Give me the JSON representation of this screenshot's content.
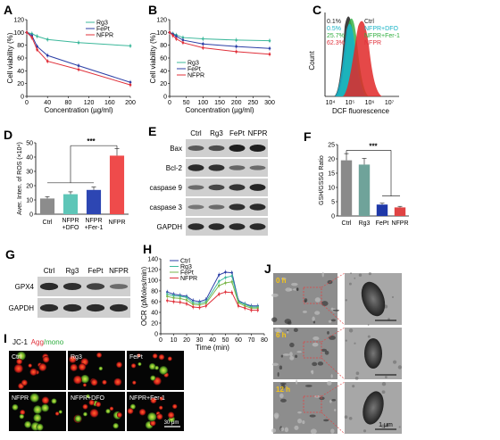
{
  "colors": {
    "rg3": "#3cb89b",
    "fept": "#2b3fa6",
    "nfpr": "#e0303a",
    "dfo": "#18b3c6",
    "fer1": "#2fae3f",
    "ctrl": "#555555",
    "bar_ctrl": "#8c8c8c",
    "bar_dfo": "#5ec6b8",
    "bar_fer": "#2d46b3",
    "bar_nfpr": "#ef4b4b",
    "bar_gsh_ctrl": "#8a8a8a",
    "bar_gsh_rg3": "#6fa39a",
    "bar_gsh_fept": "#1e38a8",
    "bar_gsh_nfpr": "#e04343"
  },
  "panels": {
    "A": "A",
    "B": "B",
    "C": "C",
    "D": "D",
    "E": "E",
    "F": "F",
    "G": "G",
    "H": "H",
    "I": "I",
    "J": "J"
  },
  "panelA": {
    "ylabel": "Cell viability (%)",
    "xlabel": "Concentration (µg/ml)",
    "yticks": [
      "120",
      "100",
      "80",
      "60",
      "40",
      "20",
      "0"
    ],
    "xticks": [
      "0",
      "40",
      "80",
      "120",
      "160",
      "200"
    ],
    "legend": [
      "Rg3",
      "FePt",
      "NFPR"
    ]
  },
  "panelB": {
    "ylabel": "Cell viability (%)",
    "xlabel": "Concentration (µg/ml)",
    "yticks": [
      "120",
      "100",
      "80",
      "60",
      "40",
      "20",
      "0"
    ],
    "xticks": [
      "0",
      "50",
      "100",
      "150",
      "200",
      "250",
      "300"
    ],
    "legend": [
      "Rg3",
      "FePt",
      "NFPR"
    ]
  },
  "panelC": {
    "ylabel": "Count",
    "xlabel": "DCF fluorescence",
    "xticks": [
      "10⁴",
      "10⁵",
      "10⁶",
      "10⁷"
    ],
    "pcts": [
      "0.1%",
      "0.5%",
      "25.7%",
      "62.3%"
    ],
    "legend": [
      "Ctrl",
      "NFPR+DFO",
      "NFPR+Fer-1",
      "NFPR"
    ]
  },
  "panelD": {
    "ylabel": "Aver. Inten. of ROS (×10⁴)",
    "sig": "***",
    "yticks": [
      "50",
      "40",
      "30",
      "20",
      "10",
      "0"
    ],
    "cats": [
      "Ctrl",
      "NFPR\n+DFO",
      "NFPR\n+Fer-1",
      "NFPR"
    ],
    "cat1": "Ctrl",
    "cat2a": "NFPR",
    "cat2b": "+DFO",
    "cat3a": "NFPR",
    "cat3b": "+Fer-1",
    "cat4": "NFPR"
  },
  "panelE": {
    "cols": [
      "Ctrl",
      "Rg3",
      "FePt",
      "NFPR"
    ],
    "rows": [
      "Bax",
      "Bcl-2",
      "caspase 9",
      "caspase 3",
      "GAPDH"
    ]
  },
  "panelF": {
    "ylabel": "GSH/GSSG Ratio",
    "sig": "***",
    "yticks": [
      "25",
      "20",
      "15",
      "10",
      "5",
      "0"
    ],
    "cats": [
      "Ctrl",
      "Rg3",
      "FePt",
      "NFPR"
    ]
  },
  "panelG": {
    "cols": [
      "Ctrl",
      "Rg3",
      "FePt",
      "NFPR"
    ],
    "rows": [
      "GPX4",
      "GAPDH"
    ]
  },
  "panelH": {
    "ylabel": "OCR (pMoles/min)",
    "xlabel": "Time (min)",
    "yticks": [
      "140",
      "120",
      "100",
      "80",
      "60",
      "40",
      "20",
      "0"
    ],
    "xticks": [
      "0",
      "10",
      "20",
      "30",
      "40",
      "50",
      "60",
      "70",
      "80"
    ],
    "legend": [
      "Ctrl",
      "Rg3",
      "FePt",
      "NFPR"
    ]
  },
  "panelI": {
    "title_a": "JC-1",
    "title_b": "Agg",
    "title_c": "/mono",
    "labels": [
      "Ctrl",
      "Rg3",
      "FePt",
      "NFPR",
      "NFPR+DFO",
      "NFPR+Fer-1"
    ],
    "scale": "30 μm"
  },
  "panelJ": {
    "times": [
      "0 h",
      "6 h",
      "12 h"
    ],
    "scale": "1 μm"
  },
  "chart_data": [
    {
      "type": "line",
      "xlabel": "Concentration (µg/ml)",
      "ylabel": "Cell viability (%)",
      "ylim": [
        0,
        120
      ],
      "x": [
        0,
        10,
        20,
        40,
        100,
        200
      ],
      "series": [
        {
          "name": "Rg3",
          "values": [
            100,
            98,
            94,
            89,
            84,
            79
          ]
        },
        {
          "name": "FePt",
          "values": [
            100,
            95,
            78,
            64,
            48,
            22
          ]
        },
        {
          "name": "NFPR",
          "values": [
            100,
            92,
            73,
            55,
            42,
            18
          ]
        }
      ]
    },
    {
      "type": "line",
      "xlabel": "Concentration (µg/ml)",
      "ylabel": "Cell viability (%)",
      "ylim": [
        0,
        120
      ],
      "x": [
        0,
        10,
        20,
        40,
        100,
        200,
        300
      ],
      "series": [
        {
          "name": "Rg3",
          "values": [
            100,
            98,
            96,
            92,
            90,
            88,
            87
          ]
        },
        {
          "name": "FePt",
          "values": [
            100,
            97,
            94,
            88,
            82,
            78,
            75
          ]
        },
        {
          "name": "NFPR",
          "values": [
            100,
            95,
            90,
            84,
            76,
            70,
            66
          ]
        }
      ]
    },
    {
      "type": "bar",
      "ylabel": "Aver. Inten. of ROS (×10⁴)",
      "ylim": [
        0,
        50
      ],
      "categories": [
        "Ctrl",
        "NFPR+DFO",
        "NFPR+Fer-1",
        "NFPR"
      ],
      "values": [
        11,
        14,
        17,
        41
      ]
    },
    {
      "type": "bar",
      "ylabel": "GSH/GSSG Ratio",
      "ylim": [
        0,
        25
      ],
      "categories": [
        "Ctrl",
        "Rg3",
        "FePt",
        "NFPR"
      ],
      "values": [
        19.5,
        18,
        4,
        3
      ]
    },
    {
      "type": "line",
      "xlabel": "Time (min)",
      "ylabel": "OCR (pMoles/min)",
      "ylim": [
        0,
        140
      ],
      "x": [
        5,
        10,
        15,
        20,
        25,
        30,
        35,
        45,
        50,
        55,
        60,
        65,
        70,
        75
      ],
      "series": [
        {
          "name": "Ctrl",
          "values": [
            78,
            74,
            72,
            70,
            62,
            60,
            64,
            110,
            115,
            114,
            62,
            56,
            52,
            52
          ]
        },
        {
          "name": "Rg3",
          "values": [
            74,
            71,
            70,
            68,
            58,
            57,
            60,
            98,
            105,
            108,
            60,
            55,
            50,
            50
          ]
        },
        {
          "name": "FePt",
          "values": [
            70,
            67,
            66,
            63,
            55,
            54,
            57,
            90,
            95,
            97,
            58,
            52,
            48,
            48
          ]
        },
        {
          "name": "NFPR",
          "values": [
            62,
            60,
            59,
            56,
            50,
            49,
            52,
            74,
            78,
            77,
            52,
            48,
            44,
            44
          ]
        }
      ]
    }
  ]
}
